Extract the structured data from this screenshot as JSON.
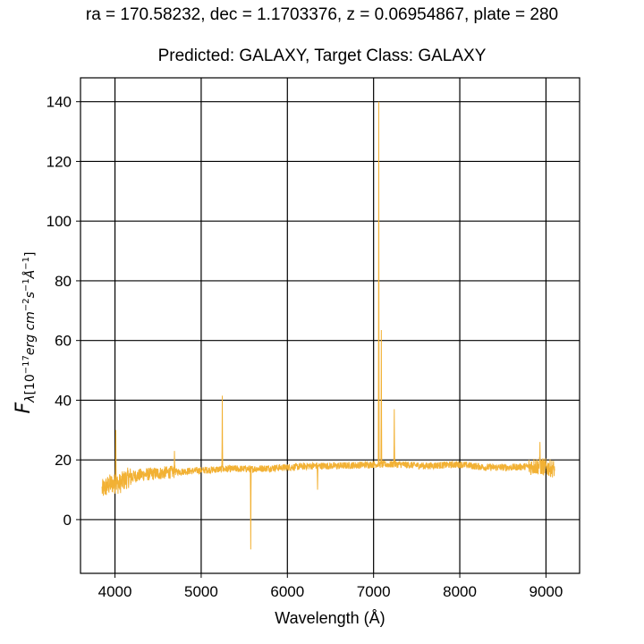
{
  "chart_data": {
    "type": "line",
    "title": "ra = 170.58232, dec = 1.1703376, z = 0.06954867, plate = 280",
    "subtitle": "Predicted: GALAXY, Target Class: GALAXY",
    "xlabel": "Wavelength (Å)",
    "ylabel": {
      "symbol": "F",
      "sub_lambda": "λ",
      "sub_units": "[10",
      "sup1": "−17",
      "mid1": "erg cm",
      "sup2": "−2",
      "mid2": "s",
      "sup3": "−1",
      "mid3": "Å",
      "sup4": "−1",
      "close": "]"
    },
    "xlim": [
      3600,
      9390
    ],
    "ylim": [
      -18,
      148
    ],
    "xticks": [
      4000,
      5000,
      6000,
      7000,
      8000,
      9000
    ],
    "yticks": [
      0,
      20,
      40,
      60,
      80,
      100,
      120,
      140
    ],
    "grid": true,
    "line_color": "#f2b134",
    "x_range": [
      3850,
      9100
    ],
    "continuum": [
      [
        3850,
        10
      ],
      [
        3950,
        12
      ],
      [
        4050,
        12
      ],
      [
        4150,
        14
      ],
      [
        4300,
        15
      ],
      [
        4500,
        15.5
      ],
      [
        4700,
        16
      ],
      [
        5000,
        16.5
      ],
      [
        5300,
        17
      ],
      [
        5600,
        17
      ],
      [
        6000,
        17.5
      ],
      [
        6300,
        18
      ],
      [
        6600,
        18
      ],
      [
        7000,
        18.5
      ],
      [
        7300,
        18.5
      ],
      [
        7600,
        18
      ],
      [
        8000,
        18.5
      ],
      [
        8300,
        17.5
      ],
      [
        8600,
        17.5
      ],
      [
        8900,
        18
      ],
      [
        9100,
        17
      ]
    ],
    "features": [
      {
        "x": 4010,
        "y": 30
      },
      {
        "x": 4690,
        "y": 23
      },
      {
        "x": 5245,
        "y": 41.5
      },
      {
        "x": 5575,
        "y": -10
      },
      {
        "x": 6350,
        "y": 10
      },
      {
        "x": 7060,
        "y": 140
      },
      {
        "x": 7090,
        "y": 63.5
      },
      {
        "x": 7240,
        "y": 37
      },
      {
        "x": 8930,
        "y": 26
      }
    ]
  }
}
